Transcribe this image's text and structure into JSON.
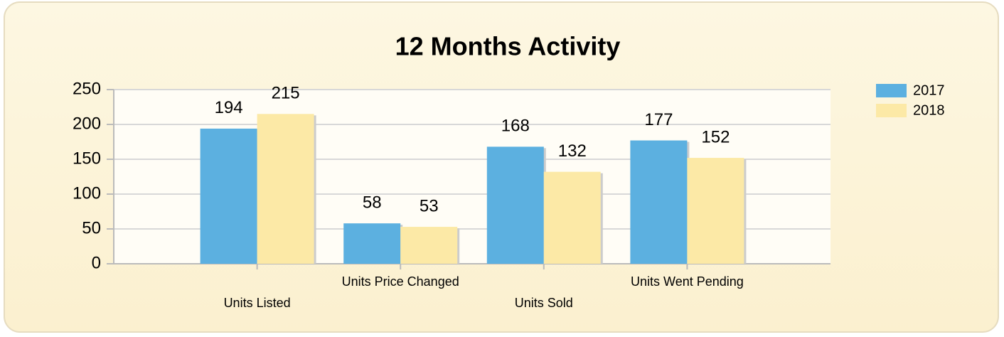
{
  "chart_data": {
    "type": "bar",
    "title": "12 Months Activity",
    "categories": [
      "Units Listed",
      "Units Price Changed",
      "Units Sold",
      "Units Went Pending"
    ],
    "series": [
      {
        "name": "2017",
        "color": "#5cb0e0",
        "values": [
          194,
          58,
          168,
          177
        ]
      },
      {
        "name": "2018",
        "color": "#fce9a6",
        "values": [
          215,
          53,
          132,
          152
        ]
      }
    ],
    "ylim": [
      0,
      250
    ],
    "yticks": [
      0,
      50,
      100,
      150,
      200,
      250
    ],
    "grid": true,
    "legend": "top-right"
  }
}
